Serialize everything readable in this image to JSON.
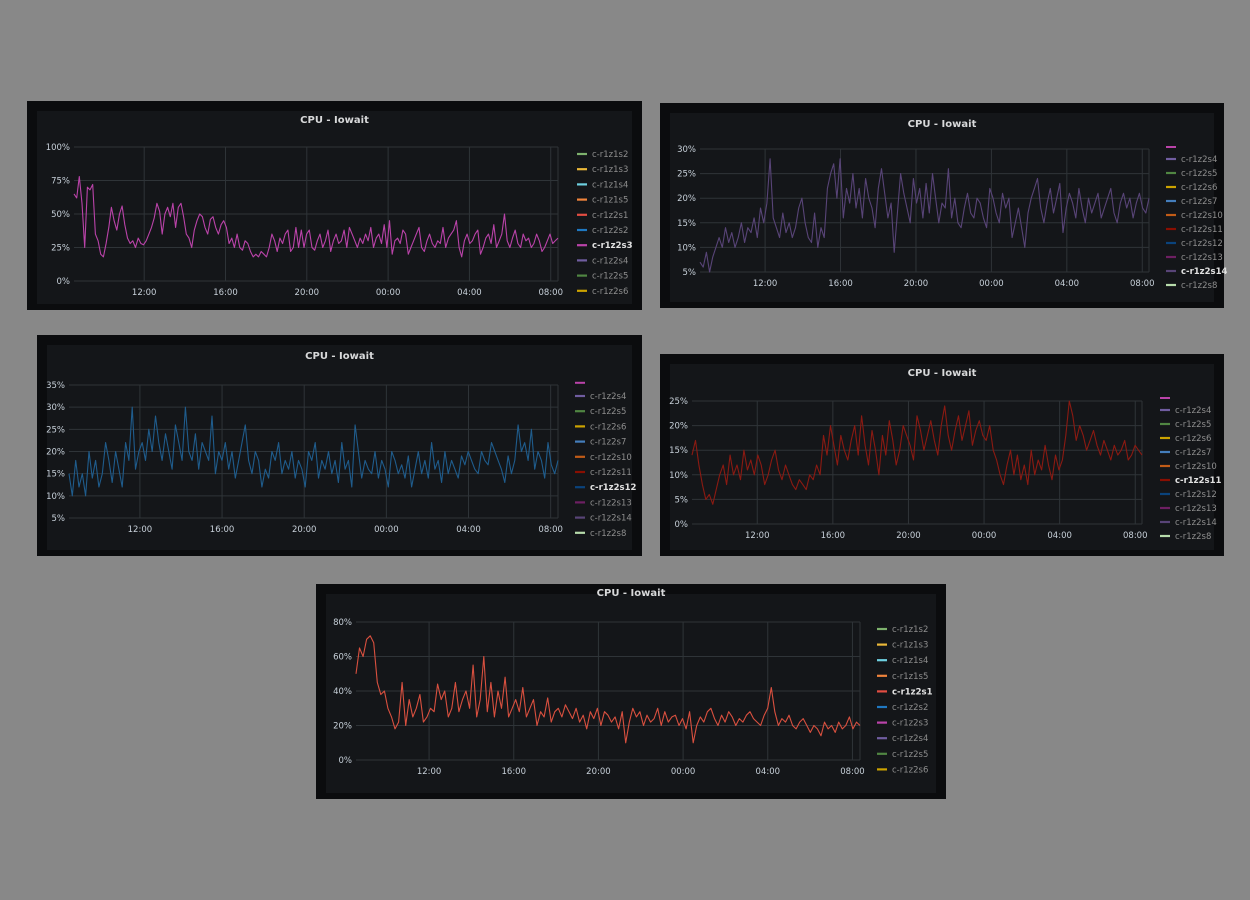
{
  "chart_data": [
    {
      "type": "line",
      "title": "CPU - Iowait",
      "yticks": [
        "0%",
        "25%",
        "50%",
        "75%",
        "100%"
      ],
      "ylim": [
        0,
        100
      ],
      "xticks": [
        "12:00",
        "16:00",
        "20:00",
        "00:00",
        "04:00",
        "08:00"
      ],
      "grid": true,
      "legend_position": "right",
      "legend": [
        {
          "name": "c-r1z1s2",
          "color": "#7eb26d"
        },
        {
          "name": "c-r1z1s3",
          "color": "#eab839"
        },
        {
          "name": "c-r1z1s4",
          "color": "#6ed0e0"
        },
        {
          "name": "c-r1z1s5",
          "color": "#ef843c"
        },
        {
          "name": "c-r1z2s1",
          "color": "#e24d42"
        },
        {
          "name": "c-r1z2s2",
          "color": "#1f78c1"
        },
        {
          "name": "c-r1z2s3",
          "color": "#ba43a9",
          "selected": true
        },
        {
          "name": "c-r1z2s4",
          "color": "#705da0"
        },
        {
          "name": "c-r1z2s5",
          "color": "#508642"
        },
        {
          "name": "c-r1z2s6",
          "color": "#cca300"
        }
      ],
      "series_color": "#ba43a9",
      "series": [
        {
          "values": [
            65,
            62,
            78,
            58,
            25,
            70,
            68,
            72,
            35,
            30,
            20,
            18,
            28,
            40,
            55,
            45,
            38,
            50,
            56,
            42,
            32,
            28,
            30,
            25,
            32,
            28,
            27,
            30,
            35,
            40,
            47,
            58,
            52,
            35,
            50,
            55,
            48,
            58,
            40,
            55,
            58,
            48,
            35,
            32,
            25,
            38,
            45,
            50,
            48,
            40,
            35,
            46,
            48,
            40,
            35,
            42,
            45,
            40,
            28,
            32,
            25,
            35,
            25,
            23,
            30,
            28,
            22,
            18,
            20,
            18,
            22,
            20,
            18,
            25,
            35,
            30,
            22,
            32,
            28,
            35,
            38,
            22,
            25,
            40,
            25,
            38,
            25,
            35,
            38,
            25,
            23,
            30,
            35,
            25,
            30,
            38,
            22,
            30,
            35,
            28,
            30,
            38,
            25,
            40,
            35,
            30,
            25,
            32,
            28,
            35,
            30,
            40,
            25,
            32,
            35,
            28,
            42,
            25,
            45,
            20,
            30,
            32,
            28,
            38,
            35,
            20,
            25,
            30,
            35,
            40,
            25,
            22,
            30,
            35,
            28,
            25,
            30,
            28,
            40,
            25,
            32,
            35,
            38,
            45,
            25,
            18,
            30,
            35,
            28,
            30,
            35,
            38,
            20,
            25,
            32,
            35,
            28,
            42,
            25,
            30,
            35,
            50,
            30,
            25,
            32,
            38,
            28,
            25,
            35,
            30,
            32,
            25,
            28,
            35,
            30,
            22,
            25,
            30,
            35,
            28,
            30,
            32
          ]
        }
      ]
    },
    {
      "type": "line",
      "title": "CPU - Iowait",
      "yticks": [
        "5%",
        "10%",
        "15%",
        "20%",
        "25%",
        "30%"
      ],
      "ylim": [
        5,
        30
      ],
      "xticks": [
        "12:00",
        "16:00",
        "20:00",
        "00:00",
        "04:00",
        "08:00"
      ],
      "grid": true,
      "legend_position": "right",
      "legend": [
        {
          "name": "c-r1z2s4",
          "color": "#705da0"
        },
        {
          "name": "c-r1z2s5",
          "color": "#508642"
        },
        {
          "name": "c-r1z2s6",
          "color": "#cca300"
        },
        {
          "name": "c-r1z2s7",
          "color": "#447ebc"
        },
        {
          "name": "c-r1z2s10",
          "color": "#c15c17"
        },
        {
          "name": "c-r1z2s11",
          "color": "#890f02"
        },
        {
          "name": "c-r1z2s12",
          "color": "#0a437c"
        },
        {
          "name": "c-r1z2s13",
          "color": "#6d1f62"
        },
        {
          "name": "c-r1z2s14",
          "color": "#584477",
          "selected": true
        },
        {
          "name": "c-r1z2s8",
          "color": "#b7dbab"
        }
      ],
      "series_color": "#584477",
      "series": [
        {
          "values": [
            7,
            6,
            9,
            5,
            8,
            10,
            12,
            10,
            14,
            11,
            13,
            10,
            12,
            15,
            11,
            14,
            13,
            16,
            12,
            18,
            15,
            19,
            28,
            16,
            14,
            12,
            17,
            13,
            15,
            12,
            14,
            18,
            20,
            15,
            12,
            11,
            17,
            10,
            14,
            12,
            22,
            25,
            27,
            20,
            28,
            16,
            22,
            19,
            25,
            18,
            22,
            16,
            24,
            20,
            18,
            14,
            22,
            26,
            21,
            16,
            19,
            9,
            17,
            25,
            21,
            18,
            15,
            24,
            19,
            22,
            16,
            23,
            17,
            25,
            20,
            15,
            19,
            18,
            26,
            16,
            20,
            15,
            14,
            18,
            21,
            17,
            16,
            20,
            19,
            16,
            14,
            22,
            20,
            17,
            15,
            21,
            18,
            20,
            12,
            15,
            18,
            14,
            10,
            17,
            20,
            22,
            24,
            18,
            15,
            19,
            22,
            17,
            20,
            23,
            13,
            18,
            21,
            19,
            16,
            22,
            18,
            15,
            20,
            17,
            19,
            21,
            16,
            18,
            20,
            22,
            17,
            15,
            19,
            21,
            18,
            20,
            16,
            19,
            21,
            18,
            17,
            20
          ]
        }
      ]
    },
    {
      "type": "line",
      "title": "CPU - Iowait",
      "yticks": [
        "5%",
        "10%",
        "15%",
        "20%",
        "25%",
        "30%",
        "35%"
      ],
      "ylim": [
        5,
        35
      ],
      "xticks": [
        "12:00",
        "16:00",
        "20:00",
        "00:00",
        "04:00",
        "08:00"
      ],
      "grid": true,
      "legend_position": "right",
      "legend": [
        {
          "name": "c-r1z2s4",
          "color": "#705da0"
        },
        {
          "name": "c-r1z2s5",
          "color": "#508642"
        },
        {
          "name": "c-r1z2s6",
          "color": "#cca300"
        },
        {
          "name": "c-r1z2s7",
          "color": "#447ebc"
        },
        {
          "name": "c-r1z2s10",
          "color": "#c15c17"
        },
        {
          "name": "c-r1z2s11",
          "color": "#890f02"
        },
        {
          "name": "c-r1z2s12",
          "color": "#0a437c",
          "selected": true
        },
        {
          "name": "c-r1z2s13",
          "color": "#6d1f62"
        },
        {
          "name": "c-r1z2s14",
          "color": "#584477"
        },
        {
          "name": "c-r1z2s8",
          "color": "#b7dbab"
        }
      ],
      "series_color": "#1f5c8c",
      "series": [
        {
          "values": [
            15,
            10,
            18,
            12,
            15,
            10,
            20,
            14,
            18,
            12,
            15,
            22,
            18,
            13,
            20,
            16,
            12,
            22,
            18,
            30,
            16,
            20,
            22,
            18,
            25,
            20,
            28,
            22,
            18,
            24,
            20,
            16,
            26,
            22,
            18,
            30,
            20,
            18,
            24,
            16,
            22,
            20,
            18,
            28,
            15,
            20,
            18,
            22,
            16,
            20,
            14,
            18,
            22,
            26,
            18,
            15,
            20,
            18,
            12,
            16,
            14,
            20,
            18,
            22,
            15,
            18,
            16,
            20,
            14,
            18,
            16,
            12,
            20,
            18,
            22,
            14,
            18,
            16,
            20,
            15,
            18,
            13,
            22,
            16,
            18,
            12,
            26,
            20,
            14,
            18,
            16,
            15,
            20,
            14,
            18,
            16,
            12,
            20,
            18,
            15,
            17,
            14,
            19,
            12,
            16,
            20,
            15,
            18,
            14,
            22,
            16,
            18,
            13,
            20,
            15,
            18,
            16,
            14,
            19,
            17,
            20,
            18,
            16,
            15,
            20,
            18,
            17,
            22,
            20,
            18,
            16,
            13,
            19,
            15,
            18,
            26,
            20,
            22,
            18,
            25,
            16,
            20,
            18,
            14,
            22,
            17,
            15,
            18
          ]
        }
      ]
    },
    {
      "type": "line",
      "title": "CPU - Iowait",
      "yticks": [
        "0%",
        "5%",
        "10%",
        "15%",
        "20%",
        "25%"
      ],
      "ylim": [
        0,
        25
      ],
      "xticks": [
        "12:00",
        "16:00",
        "20:00",
        "00:00",
        "04:00",
        "08:00"
      ],
      "grid": true,
      "legend_position": "right",
      "legend": [
        {
          "name": "c-r1z2s4",
          "color": "#705da0"
        },
        {
          "name": "c-r1z2s5",
          "color": "#508642"
        },
        {
          "name": "c-r1z2s6",
          "color": "#cca300"
        },
        {
          "name": "c-r1z2s7",
          "color": "#447ebc"
        },
        {
          "name": "c-r1z2s10",
          "color": "#c15c17"
        },
        {
          "name": "c-r1z2s11",
          "color": "#890f02",
          "selected": true
        },
        {
          "name": "c-r1z2s12",
          "color": "#0a437c"
        },
        {
          "name": "c-r1z2s13",
          "color": "#6d1f62"
        },
        {
          "name": "c-r1z2s14",
          "color": "#584477"
        },
        {
          "name": "c-r1z2s8",
          "color": "#b7dbab"
        }
      ],
      "series_color": "#8b1a12",
      "series": [
        {
          "values": [
            14,
            17,
            12,
            8,
            5,
            6,
            4,
            7,
            10,
            12,
            8,
            14,
            10,
            12,
            9,
            15,
            11,
            13,
            10,
            14,
            12,
            8,
            10,
            13,
            15,
            11,
            9,
            12,
            10,
            8,
            7,
            9,
            8,
            7,
            10,
            9,
            12,
            10,
            18,
            14,
            20,
            16,
            12,
            18,
            15,
            13,
            17,
            20,
            14,
            22,
            16,
            12,
            19,
            15,
            10,
            18,
            14,
            21,
            17,
            12,
            15,
            20,
            18,
            16,
            13,
            22,
            19,
            15,
            18,
            21,
            17,
            14,
            20,
            24,
            18,
            15,
            19,
            22,
            17,
            20,
            23,
            16,
            19,
            21,
            18,
            17,
            20,
            15,
            13,
            10,
            8,
            12,
            15,
            10,
            14,
            9,
            12,
            8,
            15,
            10,
            13,
            11,
            16,
            12,
            9,
            14,
            11,
            13,
            18,
            25,
            22,
            17,
            20,
            18,
            15,
            17,
            19,
            16,
            14,
            17,
            15,
            13,
            16,
            14,
            15,
            17,
            13,
            14,
            16,
            15,
            14
          ]
        }
      ]
    },
    {
      "type": "line",
      "title": "CPU - Iowait",
      "yticks": [
        "0%",
        "20%",
        "40%",
        "60%",
        "80%"
      ],
      "ylim": [
        0,
        80
      ],
      "xticks": [
        "12:00",
        "16:00",
        "20:00",
        "00:00",
        "04:00",
        "08:00"
      ],
      "grid": true,
      "legend_position": "right",
      "legend": [
        {
          "name": "c-r1z1s2",
          "color": "#7eb26d"
        },
        {
          "name": "c-r1z1s3",
          "color": "#eab839"
        },
        {
          "name": "c-r1z1s4",
          "color": "#6ed0e0"
        },
        {
          "name": "c-r1z1s5",
          "color": "#ef843c"
        },
        {
          "name": "c-r1z2s1",
          "color": "#e24d42",
          "selected": true
        },
        {
          "name": "c-r1z2s2",
          "color": "#1f78c1"
        },
        {
          "name": "c-r1z2s3",
          "color": "#ba43a9"
        },
        {
          "name": "c-r1z2s4",
          "color": "#705da0"
        },
        {
          "name": "c-r1z2s5",
          "color": "#508642"
        },
        {
          "name": "c-r1z2s6",
          "color": "#cca300"
        }
      ],
      "series_color": "#d9503f",
      "series": [
        {
          "values": [
            50,
            65,
            60,
            70,
            72,
            68,
            45,
            38,
            40,
            30,
            25,
            18,
            22,
            45,
            20,
            35,
            25,
            30,
            38,
            22,
            25,
            30,
            28,
            44,
            35,
            40,
            25,
            30,
            45,
            28,
            35,
            40,
            30,
            55,
            25,
            35,
            60,
            28,
            45,
            25,
            40,
            30,
            48,
            25,
            30,
            35,
            28,
            42,
            25,
            30,
            35,
            20,
            28,
            25,
            36,
            22,
            28,
            30,
            25,
            32,
            28,
            24,
            30,
            22,
            26,
            18,
            28,
            24,
            30,
            20,
            28,
            26,
            22,
            25,
            18,
            28,
            10,
            22,
            30,
            25,
            28,
            20,
            26,
            22,
            24,
            30,
            20,
            28,
            22,
            25,
            26,
            20,
            24,
            18,
            28,
            10,
            20,
            25,
            22,
            28,
            30,
            24,
            20,
            26,
            22,
            28,
            25,
            20,
            24,
            22,
            26,
            28,
            24,
            22,
            20,
            26,
            30,
            42,
            28,
            20,
            24,
            22,
            26,
            20,
            18,
            22,
            24,
            20,
            16,
            20,
            18,
            14,
            22,
            18,
            20,
            16,
            22,
            18,
            20,
            25,
            18,
            22,
            20
          ]
        }
      ]
    }
  ]
}
